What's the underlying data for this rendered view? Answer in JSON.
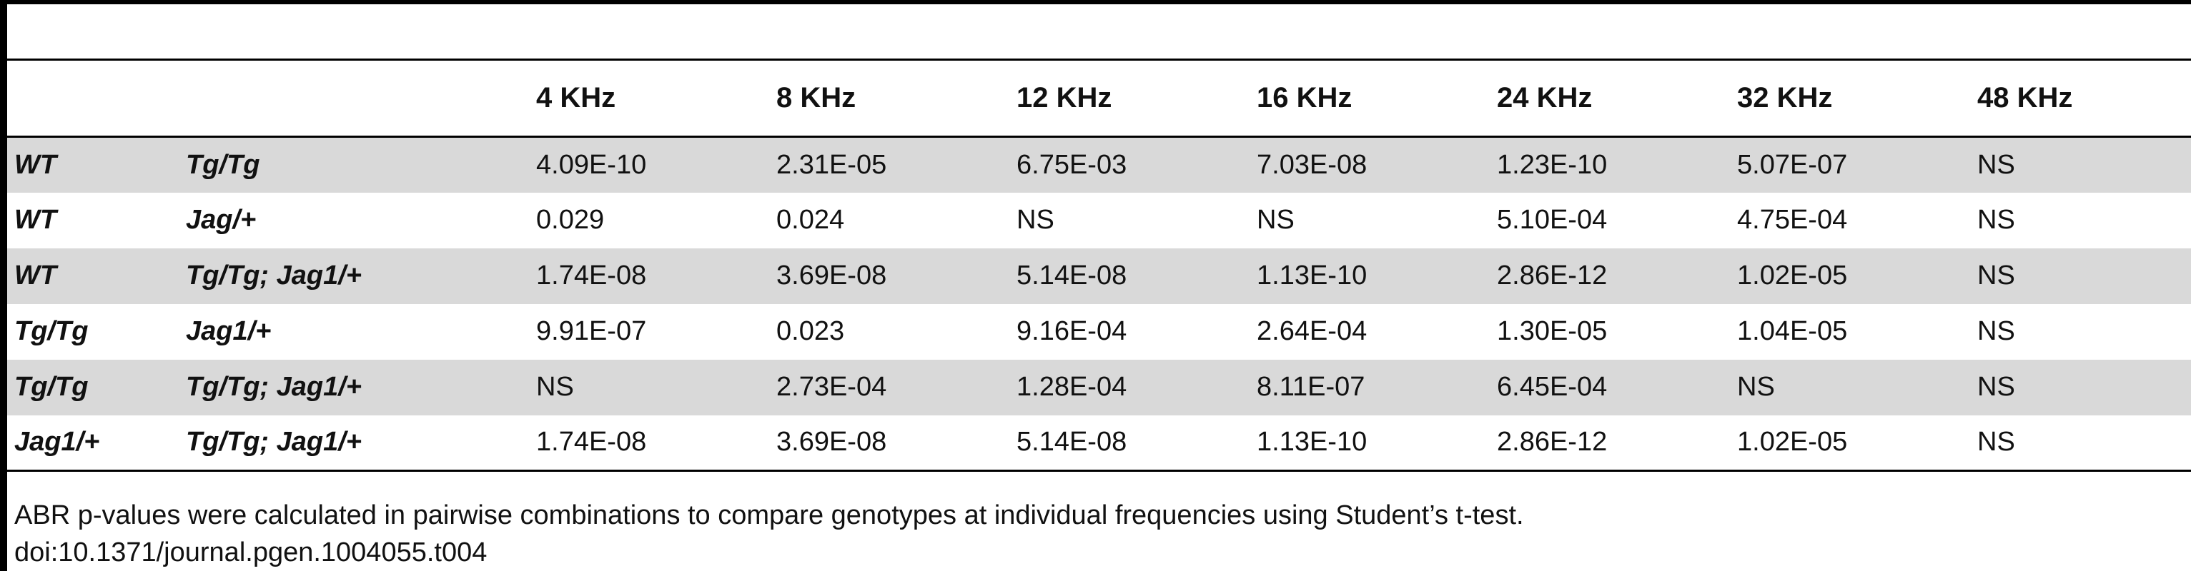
{
  "table": {
    "headers": [
      "",
      "",
      "4 KHz",
      "8 KHz",
      "12 KHz",
      "16 KHz",
      "24 KHz",
      "32 KHz",
      "48 KHz"
    ],
    "rows": [
      {
        "g1": "WT",
        "g2": "Tg/Tg",
        "values": [
          "4.09E-10",
          "2.31E-05",
          "6.75E-03",
          "7.03E-08",
          "1.23E-10",
          "5.07E-07",
          "NS"
        ]
      },
      {
        "g1": "WT",
        "g2": "Jag/+",
        "values": [
          "0.029",
          "0.024",
          "NS",
          "NS",
          "5.10E-04",
          "4.75E-04",
          "NS"
        ]
      },
      {
        "g1": "WT",
        "g2": "Tg/Tg; Jag1/+",
        "values": [
          "1.74E-08",
          "3.69E-08",
          "5.14E-08",
          "1.13E-10",
          "2.86E-12",
          "1.02E-05",
          "NS"
        ]
      },
      {
        "g1": "Tg/Tg",
        "g2": "Jag1/+",
        "values": [
          "9.91E-07",
          "0.023",
          "9.16E-04",
          "2.64E-04",
          "1.30E-05",
          "1.04E-05",
          "NS"
        ]
      },
      {
        "g1": "Tg/Tg",
        "g2": "Tg/Tg; Jag1/+",
        "values": [
          "NS",
          "2.73E-04",
          "1.28E-04",
          "8.11E-07",
          "6.45E-04",
          "NS",
          "NS"
        ]
      },
      {
        "g1": "Jag1/+",
        "g2": "Tg/Tg; Jag1/+",
        "values": [
          "1.74E-08",
          "3.69E-08",
          "5.14E-08",
          "1.13E-10",
          "2.86E-12",
          "1.02E-05",
          "NS"
        ]
      }
    ]
  },
  "footnote": {
    "caption": "ABR p-values were calculated in pairwise combinations to compare genotypes at individual frequencies using Student’s t-test.",
    "doi": "doi:10.1371/journal.pgen.1004055.t004"
  }
}
